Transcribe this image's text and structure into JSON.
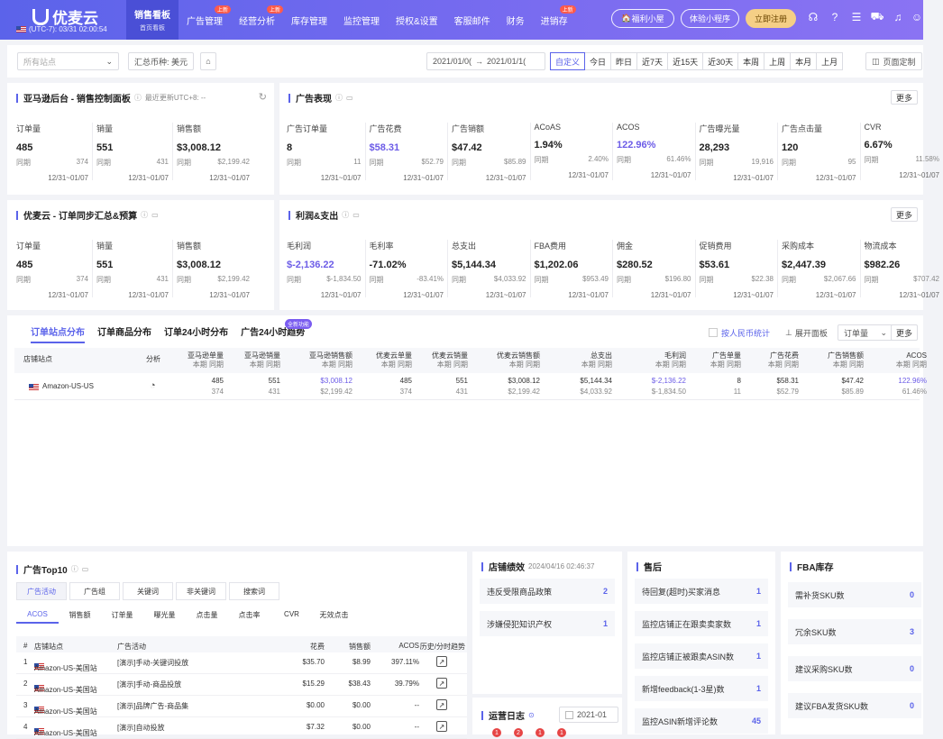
{
  "topbar": {
    "brand": "优麦云",
    "clock": "(UTC-7): 03/31 02:00:54",
    "nav": [
      {
        "label": "销售看板",
        "sub": "首页看板",
        "active": true
      },
      {
        "label": "广告管理",
        "badge": "上新"
      },
      {
        "label": "经营分析",
        "badge": "上新"
      },
      {
        "label": "库存管理"
      },
      {
        "label": "监控管理"
      },
      {
        "label": "授权&设置"
      },
      {
        "label": "客服邮件"
      },
      {
        "label": "财务"
      },
      {
        "label": "进销存",
        "badge": "上新"
      }
    ],
    "btn_welfare": "福利小屋",
    "btn_miniapp": "体验小程序",
    "btn_register": "立即注册"
  },
  "filters": {
    "site_placeholder": "所有站点",
    "currency": "汇总币种: 美元",
    "date_start": "2021/01/0(",
    "date_end": "2021/01/1(",
    "date_buttons": [
      "自定义",
      "今日",
      "昨日",
      "近7天",
      "近15天",
      "近30天",
      "本周",
      "上周",
      "本月",
      "上月"
    ],
    "page_custom": "页面定制"
  },
  "amazon": {
    "title": "亚马逊后台 - 销售控制面板",
    "note": "最近更新UTC+8: --",
    "metrics": [
      {
        "label": "订单量",
        "value": "485",
        "cmp_label": "同期",
        "cmp": "374",
        "date": "12/31~01/07"
      },
      {
        "label": "销量",
        "value": "551",
        "cmp_label": "同期",
        "cmp": "431",
        "date": "12/31~01/07"
      },
      {
        "label": "销售额",
        "value": "$3,008.12",
        "cmp_label": "同期",
        "cmp": "$2,199.42",
        "date": "12/31~01/07"
      }
    ]
  },
  "ads": {
    "title": "广告表现",
    "more": "更多",
    "metrics": [
      {
        "label": "广告订单量",
        "value": "8",
        "cmp_label": "同期",
        "cmp": "11",
        "date": "12/31~01/07"
      },
      {
        "label": "广告花费",
        "value": "$58.31",
        "cmp_label": "同期",
        "cmp": "$52.79",
        "date": "12/31~01/07"
      },
      {
        "label": "广告销额",
        "value": "$47.42",
        "cmp_label": "同期",
        "cmp": "$85.89",
        "date": "12/31~01/07"
      },
      {
        "label": "ACoAS",
        "value": "1.94%",
        "cmp_label": "同期",
        "cmp": "2.40%",
        "date": "12/31~01/07"
      },
      {
        "label": "ACOS",
        "value": "122.96%",
        "cmp_label": "同期",
        "cmp": "61.46%",
        "date": "12/31~01/07"
      },
      {
        "label": "广告曝光量",
        "value": "28,293",
        "cmp_label": "同期",
        "cmp": "19,916",
        "date": "12/31~01/07"
      },
      {
        "label": "广告点击量",
        "value": "120",
        "cmp_label": "同期",
        "cmp": "95",
        "date": "12/31~01/07"
      },
      {
        "label": "CVR",
        "value": "6.67%",
        "cmp_label": "同期",
        "cmp": "11.58%",
        "date": "12/31~01/07"
      }
    ]
  },
  "orders": {
    "title": "优麦云 - 订单同步汇总&预算",
    "metrics": [
      {
        "label": "订单量",
        "value": "485",
        "cmp_label": "同期",
        "cmp": "374",
        "date": "12/31~01/07"
      },
      {
        "label": "销量",
        "value": "551",
        "cmp_label": "同期",
        "cmp": "431",
        "date": "12/31~01/07"
      },
      {
        "label": "销售额",
        "value": "$3,008.12",
        "cmp_label": "同期",
        "cmp": "$2,199.42",
        "date": "12/31~01/07"
      }
    ]
  },
  "profit": {
    "title": "利润&支出",
    "more": "更多",
    "metrics": [
      {
        "label": "毛利润",
        "value": "$-2,136.22",
        "cmp_label": "同期",
        "cmp": "$-1,834.50",
        "date": "12/31~01/07"
      },
      {
        "label": "毛利率",
        "value": "-71.02%",
        "cmp_label": "同期",
        "cmp": "-83.41%",
        "date": "12/31~01/07"
      },
      {
        "label": "总支出",
        "value": "$5,144.34",
        "cmp_label": "同期",
        "cmp": "$4,033.92",
        "date": "12/31~01/07"
      },
      {
        "label": "FBA费用",
        "value": "$1,202.06",
        "cmp_label": "同期",
        "cmp": "$953.49",
        "date": "12/31~01/07"
      },
      {
        "label": "佣金",
        "value": "$280.52",
        "cmp_label": "同期",
        "cmp": "$196.80",
        "date": "12/31~01/07"
      },
      {
        "label": "促销费用",
        "value": "$53.61",
        "cmp_label": "同期",
        "cmp": "$22.38",
        "date": "12/31~01/07"
      },
      {
        "label": "采购成本",
        "value": "$2,447.39",
        "cmp_label": "同期",
        "cmp": "$2,067.66",
        "date": "12/31~01/07"
      },
      {
        "label": "物流成本",
        "value": "$982.26",
        "cmp_label": "同期",
        "cmp": "$707.42",
        "date": "12/31~01/07"
      }
    ]
  },
  "dist": {
    "tabs": [
      "订单站点分布",
      "订单商品分布",
      "订单24小时分布",
      "广告24小时趋势"
    ],
    "badge": "全新功能",
    "rmb": "按人民币统计",
    "expand": "展开面板",
    "select": "订单量",
    "more": "更多",
    "headers": [
      {
        "h": "店铺站点"
      },
      {
        "h": "分析"
      },
      {
        "h": "亚马逊单量",
        "s": "本期 同期"
      },
      {
        "h": "亚马逊销量",
        "s": "本期 同期"
      },
      {
        "h": "亚马逊销售额",
        "s": "本期 同期"
      },
      {
        "h": "优麦云单量",
        "s": "本期 同期"
      },
      {
        "h": "优麦云销量",
        "s": "本期 同期"
      },
      {
        "h": "优麦云销售额",
        "s": "本期 同期"
      },
      {
        "h": "总支出",
        "s": "本期 同期"
      },
      {
        "h": "毛利润",
        "s": "本期 同期"
      },
      {
        "h": "广告单量",
        "s": "本期 同期"
      },
      {
        "h": "广告花费",
        "s": "本期 同期"
      },
      {
        "h": "广告销售额",
        "s": "本期 同期"
      },
      {
        "h": "ACOS",
        "s": "本期 同期"
      }
    ],
    "row": {
      "site": "Amazon-US-US",
      "cells": [
        [
          "485",
          "374"
        ],
        [
          "551",
          "431"
        ],
        [
          "$3,008.12",
          "$2,199.42"
        ],
        [
          "485",
          "374"
        ],
        [
          "551",
          "431"
        ],
        [
          "$3,008.12",
          "$2,199.42"
        ],
        [
          "$5,144.34",
          "$4,033.92"
        ],
        [
          "$-2,136.22",
          "$-1,834.50"
        ],
        [
          "8",
          "11"
        ],
        [
          "$58.31",
          "$52.79"
        ],
        [
          "$47.42",
          "$85.89"
        ],
        [
          "122.96%",
          "61.46%"
        ]
      ]
    }
  },
  "top10": {
    "title": "广告Top10",
    "tabs": [
      "广告活动",
      "广告组",
      "关键词",
      "非关键词",
      "搜索词"
    ],
    "metric_tabs": [
      "ACOS",
      "销售额",
      "订单量",
      "曝光量",
      "点击量",
      "点击率",
      "CVR",
      "无效点击"
    ],
    "headers": [
      "#",
      "店铺站点",
      "广告活动",
      "花费",
      "销售额",
      "ACOS",
      "历史/分时趋势"
    ],
    "rows": [
      {
        "n": "1",
        "site": "Amazon-US-美国站",
        "camp": "[演示]手动-关键词投放",
        "spend": "$35.70",
        "sales": "$8.99",
        "acos": "397.11%"
      },
      {
        "n": "2",
        "site": "Amazon-US-美国站",
        "camp": "[演示]手动-商品投放",
        "spend": "$15.29",
        "sales": "$38.43",
        "acos": "39.79%"
      },
      {
        "n": "3",
        "site": "Amazon-US-美国站",
        "camp": "[演示]品牌广告-商品集",
        "spend": "$0.00",
        "sales": "$0.00",
        "acos": "--"
      },
      {
        "n": "4",
        "site": "Amazon-US-美国站",
        "camp": "[演示]自动投放",
        "spend": "$7.32",
        "sales": "$0.00",
        "acos": "--"
      }
    ]
  },
  "perf": {
    "title": "店铺绩效",
    "time": "2024/04/16 02:46:37",
    "rows": [
      {
        "label": "违反受限商品政策",
        "n": "2"
      },
      {
        "label": "涉嫌侵犯知识产权",
        "n": "1"
      }
    ]
  },
  "oplog": {
    "title": "运营日志",
    "date": "2021-01",
    "badges": [
      "1",
      "2",
      "1",
      "1"
    ]
  },
  "after": {
    "title": "售后",
    "rows": [
      {
        "label": "待回复(超时)买家消息",
        "n": "1"
      },
      {
        "label": "监控店铺正在跟卖卖家数",
        "n": "1"
      },
      {
        "label": "监控店铺正被跟卖ASIN数",
        "n": "1"
      },
      {
        "label": "新增feedback(1-3星)数",
        "n": "1"
      },
      {
        "label": "监控ASIN新增评论数",
        "n": "45"
      }
    ]
  },
  "fba": {
    "title": "FBA库存",
    "rows": [
      {
        "label": "需补货SKU数",
        "n": "0"
      },
      {
        "label": "冗余SKU数",
        "n": "3"
      },
      {
        "label": "建议采购SKU数",
        "n": "0"
      },
      {
        "label": "建议FBA发货SKU数",
        "n": "0"
      }
    ]
  }
}
